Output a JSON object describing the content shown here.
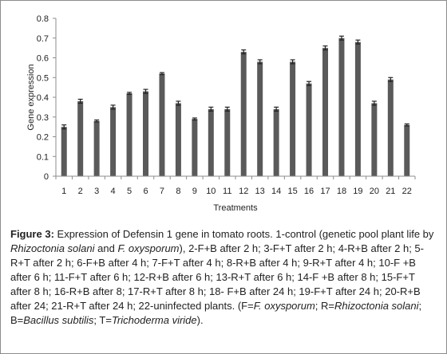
{
  "chart_data": {
    "type": "bar",
    "categories": [
      "1",
      "2",
      "3",
      "4",
      "5",
      "6",
      "7",
      "8",
      "9",
      "10",
      "11",
      "12",
      "13",
      "14",
      "15",
      "16",
      "17",
      "18",
      "19",
      "20",
      "21",
      "22"
    ],
    "values": [
      0.25,
      0.38,
      0.28,
      0.35,
      0.42,
      0.43,
      0.52,
      0.37,
      0.29,
      0.34,
      0.34,
      0.63,
      0.58,
      0.34,
      0.58,
      0.47,
      0.65,
      0.7,
      0.68,
      0.37,
      0.49,
      0.26
    ],
    "errors": [
      0.01,
      0.01,
      0.005,
      0.01,
      0.005,
      0.01,
      0.005,
      0.01,
      0.005,
      0.01,
      0.01,
      0.01,
      0.01,
      0.01,
      0.01,
      0.01,
      0.01,
      0.01,
      0.01,
      0.01,
      0.01,
      0.005
    ],
    "title": "",
    "xlabel": "Treatments",
    "ylabel": "Gene expression",
    "ylim": [
      0,
      0.8
    ],
    "yticks": [
      "0",
      "0.1",
      "0.2",
      "0.3",
      "0.4",
      "0.5",
      "0.6",
      "0.7",
      "0.8"
    ],
    "grid": false,
    "bar_color": "#5a5a5a",
    "error_bar_color": "#222222"
  },
  "caption": {
    "figure_label": "Figure 3:",
    "text": " Expression of Defensin 1 gene in tomato roots. 1-control (genetic pool plant life by ",
    "italic_1": "Rhizoctonia solani",
    "text_2": " and ",
    "italic_2": "F. oxysporum",
    "text_3": "), 2-F+B after 2 h; 3-F+T after 2 h; 4-R+B after 2 h; 5-R+T after 2 h; 6-F+B after 4 h; 7-F+T after 4 h; 8-R+B after 4 h; 9-R+T after 4 h; 10-F +B after 6 h; 11-F+T after 6 h; 12-R+B after 6 h; 13-R+T after 6 h; 14-F +B after 8 h; 15-F+T after 8 h; 16-R+B after 8; 17-R+T after 8 h; 18- F+B after 24 h; 19-F+T after 24 h; 20-R+B after 24; 21-R+T after 24 h; 22-uninfected plants. (F=",
    "italic_3": "F. oxysporum",
    "text_4": "; R=",
    "italic_4": "Rhizoctonia solani",
    "text_5": "; B=",
    "italic_5": "Bacillus subtilis",
    "text_6": "; T=",
    "italic_6": "Trichoderma viride",
    "text_7": ")."
  }
}
